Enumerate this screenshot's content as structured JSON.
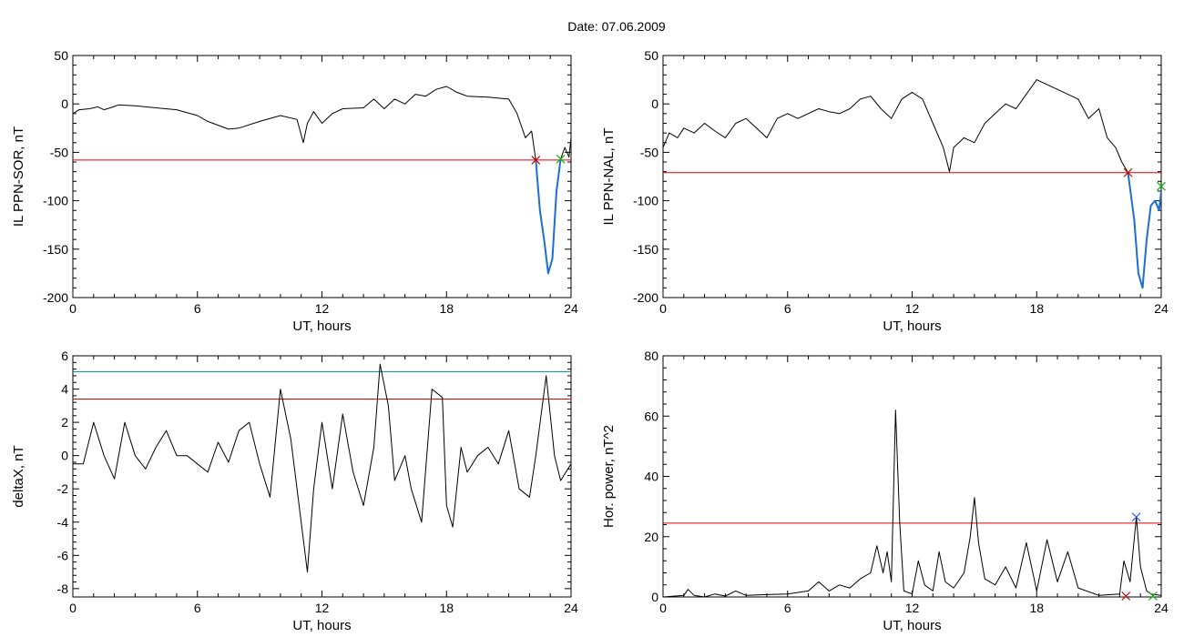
{
  "title": "Date:  07.06.2009",
  "colors": {
    "threshold_red": "#e00000",
    "threshold_teal": "#008b8b",
    "highlight_blue": "#1c6fd0",
    "marker_green": "#10b010",
    "marker_red": "#c00000",
    "marker_blue": "#3060e0"
  },
  "chart_data": [
    {
      "type": "line",
      "ylabel": "IL PPN-SOR, nT",
      "xlabel": "UT, hours",
      "xlim": [
        0,
        24
      ],
      "ylim": [
        -200,
        50
      ],
      "xticks": [
        0,
        6,
        12,
        18,
        24
      ],
      "yticks": [
        -200,
        -150,
        -100,
        -50,
        0,
        50
      ],
      "threshold": -58,
      "highlight_range": [
        22.3,
        23.5
      ],
      "markers": [
        {
          "x": 22.3,
          "y": -58,
          "color": "marker_red"
        },
        {
          "x": 23.5,
          "y": -57,
          "color": "marker_green"
        }
      ],
      "series": [
        {
          "points": [
            [
              0,
              -10
            ],
            [
              0.3,
              -6
            ],
            [
              0.8,
              -5
            ],
            [
              1.2,
              -3
            ],
            [
              1.5,
              -6
            ],
            [
              1.8,
              -4
            ],
            [
              2.2,
              -1
            ],
            [
              3,
              -2
            ],
            [
              4,
              -4
            ],
            [
              5,
              -6
            ],
            [
              6,
              -12
            ],
            [
              6.5,
              -18
            ],
            [
              7,
              -22
            ],
            [
              7.5,
              -26
            ],
            [
              8,
              -25
            ],
            [
              9,
              -18
            ],
            [
              10,
              -12
            ],
            [
              10.8,
              -16
            ],
            [
              11.1,
              -40
            ],
            [
              11.3,
              -20
            ],
            [
              11.6,
              -8
            ],
            [
              12,
              -20
            ],
            [
              12.5,
              -10
            ],
            [
              13,
              -5
            ],
            [
              14,
              -4
            ],
            [
              14.5,
              5
            ],
            [
              15,
              -5
            ],
            [
              15.5,
              5
            ],
            [
              16,
              0
            ],
            [
              16.5,
              10
            ],
            [
              17,
              8
            ],
            [
              17.5,
              15
            ],
            [
              18,
              18
            ],
            [
              18.5,
              12
            ],
            [
              19,
              8
            ],
            [
              20,
              7
            ],
            [
              21,
              5
            ],
            [
              21.4,
              -10
            ],
            [
              21.8,
              -35
            ],
            [
              22.1,
              -28
            ],
            [
              22.3,
              -58
            ],
            [
              22.5,
              -110
            ],
            [
              22.7,
              -140
            ],
            [
              22.9,
              -175
            ],
            [
              23.1,
              -160
            ],
            [
              23.3,
              -90
            ],
            [
              23.5,
              -57
            ],
            [
              23.7,
              -45
            ],
            [
              23.9,
              -55
            ],
            [
              24,
              -35
            ]
          ]
        }
      ]
    },
    {
      "type": "line",
      "ylabel": "IL PPN-NAL, nT",
      "xlabel": "UT, hours",
      "xlim": [
        0,
        24
      ],
      "ylim": [
        -200,
        50
      ],
      "xticks": [
        0,
        6,
        12,
        18,
        24
      ],
      "yticks": [
        -200,
        -150,
        -100,
        -50,
        0,
        50
      ],
      "threshold": -71,
      "highlight_range": [
        22.4,
        24
      ],
      "markers": [
        {
          "x": 22.4,
          "y": -71,
          "color": "marker_red"
        },
        {
          "x": 24,
          "y": -85,
          "color": "marker_green"
        }
      ],
      "series": [
        {
          "points": [
            [
              0,
              -45
            ],
            [
              0.3,
              -30
            ],
            [
              0.7,
              -35
            ],
            [
              1,
              -25
            ],
            [
              1.5,
              -30
            ],
            [
              2,
              -20
            ],
            [
              2.5,
              -28
            ],
            [
              3,
              -35
            ],
            [
              3.5,
              -20
            ],
            [
              4,
              -15
            ],
            [
              4.5,
              -25
            ],
            [
              5,
              -35
            ],
            [
              5.5,
              -15
            ],
            [
              6,
              -10
            ],
            [
              6.5,
              -15
            ],
            [
              7,
              -10
            ],
            [
              7.5,
              -5
            ],
            [
              8,
              -8
            ],
            [
              8.5,
              -10
            ],
            [
              9,
              -5
            ],
            [
              9.5,
              5
            ],
            [
              10,
              8
            ],
            [
              10.5,
              -5
            ],
            [
              11,
              -15
            ],
            [
              11.5,
              5
            ],
            [
              12,
              12
            ],
            [
              12.5,
              5
            ],
            [
              13,
              -20
            ],
            [
              13.5,
              -45
            ],
            [
              13.8,
              -70
            ],
            [
              14,
              -45
            ],
            [
              14.5,
              -35
            ],
            [
              15,
              -40
            ],
            [
              15.5,
              -20
            ],
            [
              16,
              -10
            ],
            [
              16.5,
              0
            ],
            [
              17,
              -5
            ],
            [
              17.5,
              10
            ],
            [
              18,
              25
            ],
            [
              18.5,
              20
            ],
            [
              19,
              15
            ],
            [
              20,
              5
            ],
            [
              20.5,
              -15
            ],
            [
              21,
              -5
            ],
            [
              21.4,
              -35
            ],
            [
              21.8,
              -45
            ],
            [
              22.1,
              -60
            ],
            [
              22.4,
              -71
            ],
            [
              22.7,
              -120
            ],
            [
              22.9,
              -175
            ],
            [
              23.1,
              -190
            ],
            [
              23.3,
              -140
            ],
            [
              23.5,
              -105
            ],
            [
              23.7,
              -100
            ],
            [
              23.9,
              -110
            ],
            [
              24,
              -90
            ]
          ]
        }
      ]
    },
    {
      "type": "line",
      "ylabel": "deltaX, nT",
      "xlabel": "UT, hours",
      "xlim": [
        0,
        24
      ],
      "ylim": [
        -8.5,
        6
      ],
      "xticks": [
        0,
        6,
        12,
        18,
        24
      ],
      "yticks": [
        -8,
        -6,
        -4,
        -2,
        0,
        2,
        4,
        6
      ],
      "threshold": 3.4,
      "threshold2": 5.05,
      "series": [
        {
          "points": [
            [
              0,
              -0.5
            ],
            [
              0.5,
              -0.5
            ],
            [
              1,
              2
            ],
            [
              1.5,
              0
            ],
            [
              2,
              -1.4
            ],
            [
              2.5,
              2
            ],
            [
              3,
              0
            ],
            [
              3.5,
              -0.8
            ],
            [
              4,
              0.5
            ],
            [
              4.5,
              1.5
            ],
            [
              5,
              0
            ],
            [
              5.5,
              0
            ],
            [
              6,
              -0.5
            ],
            [
              6.5,
              -1
            ],
            [
              7,
              0.8
            ],
            [
              7.5,
              -0.4
            ],
            [
              8,
              1.5
            ],
            [
              8.5,
              2
            ],
            [
              9,
              -0.5
            ],
            [
              9.5,
              -2.5
            ],
            [
              10,
              4
            ],
            [
              10.5,
              1
            ],
            [
              11,
              -4
            ],
            [
              11.3,
              -7
            ],
            [
              11.6,
              -2
            ],
            [
              12,
              2
            ],
            [
              12.5,
              -2
            ],
            [
              13,
              2.5
            ],
            [
              13.5,
              -1
            ],
            [
              14,
              -3
            ],
            [
              14.5,
              0.5
            ],
            [
              14.8,
              5.5
            ],
            [
              15.2,
              3
            ],
            [
              15.5,
              -1.5
            ],
            [
              16,
              0
            ],
            [
              16.3,
              -2
            ],
            [
              16.8,
              -4
            ],
            [
              17.3,
              4
            ],
            [
              17.8,
              3.5
            ],
            [
              18,
              -3
            ],
            [
              18.3,
              -4.3
            ],
            [
              18.7,
              0.5
            ],
            [
              19,
              -1
            ],
            [
              19.5,
              0
            ],
            [
              20,
              0.5
            ],
            [
              20.5,
              -0.5
            ],
            [
              21,
              1.5
            ],
            [
              21.5,
              -2
            ],
            [
              22,
              -2.5
            ],
            [
              22.3,
              0
            ],
            [
              22.8,
              4.8
            ],
            [
              23.2,
              0
            ],
            [
              23.5,
              -1.5
            ],
            [
              24,
              -0.5
            ]
          ]
        }
      ]
    },
    {
      "type": "line",
      "ylabel": "Hor. power, nT^2",
      "xlabel": "UT, hours",
      "xlim": [
        0,
        24
      ],
      "ylim": [
        0,
        80
      ],
      "xticks": [
        0,
        6,
        12,
        18,
        24
      ],
      "yticks": [
        0,
        20,
        40,
        60,
        80
      ],
      "threshold": 24.5,
      "markers": [
        {
          "x": 22.8,
          "y": 26.5,
          "color": "marker_blue"
        },
        {
          "x": 22.3,
          "y": 0.3,
          "color": "marker_red"
        },
        {
          "x": 23.6,
          "y": 0.3,
          "color": "marker_green"
        }
      ],
      "series": [
        {
          "points": [
            [
              0,
              0
            ],
            [
              1,
              0.5
            ],
            [
              1.2,
              2.5
            ],
            [
              1.5,
              0.5
            ],
            [
              2,
              0
            ],
            [
              2.5,
              1
            ],
            [
              3,
              0.3
            ],
            [
              3.5,
              2
            ],
            [
              4,
              0.5
            ],
            [
              5,
              0.8
            ],
            [
              6,
              1
            ],
            [
              7,
              2
            ],
            [
              7.5,
              5
            ],
            [
              8,
              2
            ],
            [
              8.5,
              4
            ],
            [
              9,
              3
            ],
            [
              9.5,
              6
            ],
            [
              10,
              8
            ],
            [
              10.3,
              17
            ],
            [
              10.6,
              8
            ],
            [
              10.8,
              15
            ],
            [
              11,
              5
            ],
            [
              11.2,
              62
            ],
            [
              11.4,
              25
            ],
            [
              11.6,
              2
            ],
            [
              12,
              1
            ],
            [
              12.3,
              12
            ],
            [
              12.6,
              4
            ],
            [
              13,
              2
            ],
            [
              13.3,
              15
            ],
            [
              13.6,
              5
            ],
            [
              14,
              3
            ],
            [
              14.5,
              8
            ],
            [
              14.8,
              20
            ],
            [
              15,
              33
            ],
            [
              15.2,
              18
            ],
            [
              15.5,
              6
            ],
            [
              16,
              4
            ],
            [
              16.5,
              10
            ],
            [
              17,
              3
            ],
            [
              17.5,
              18
            ],
            [
              18,
              2
            ],
            [
              18.5,
              19
            ],
            [
              19,
              5
            ],
            [
              19.5,
              15
            ],
            [
              20,
              3
            ],
            [
              21,
              0.5
            ],
            [
              22,
              1
            ],
            [
              22.2,
              12
            ],
            [
              22.5,
              5
            ],
            [
              22.8,
              26.5
            ],
            [
              23,
              10
            ],
            [
              23.3,
              2
            ],
            [
              23.5,
              1
            ],
            [
              24,
              0.5
            ]
          ]
        }
      ]
    }
  ]
}
